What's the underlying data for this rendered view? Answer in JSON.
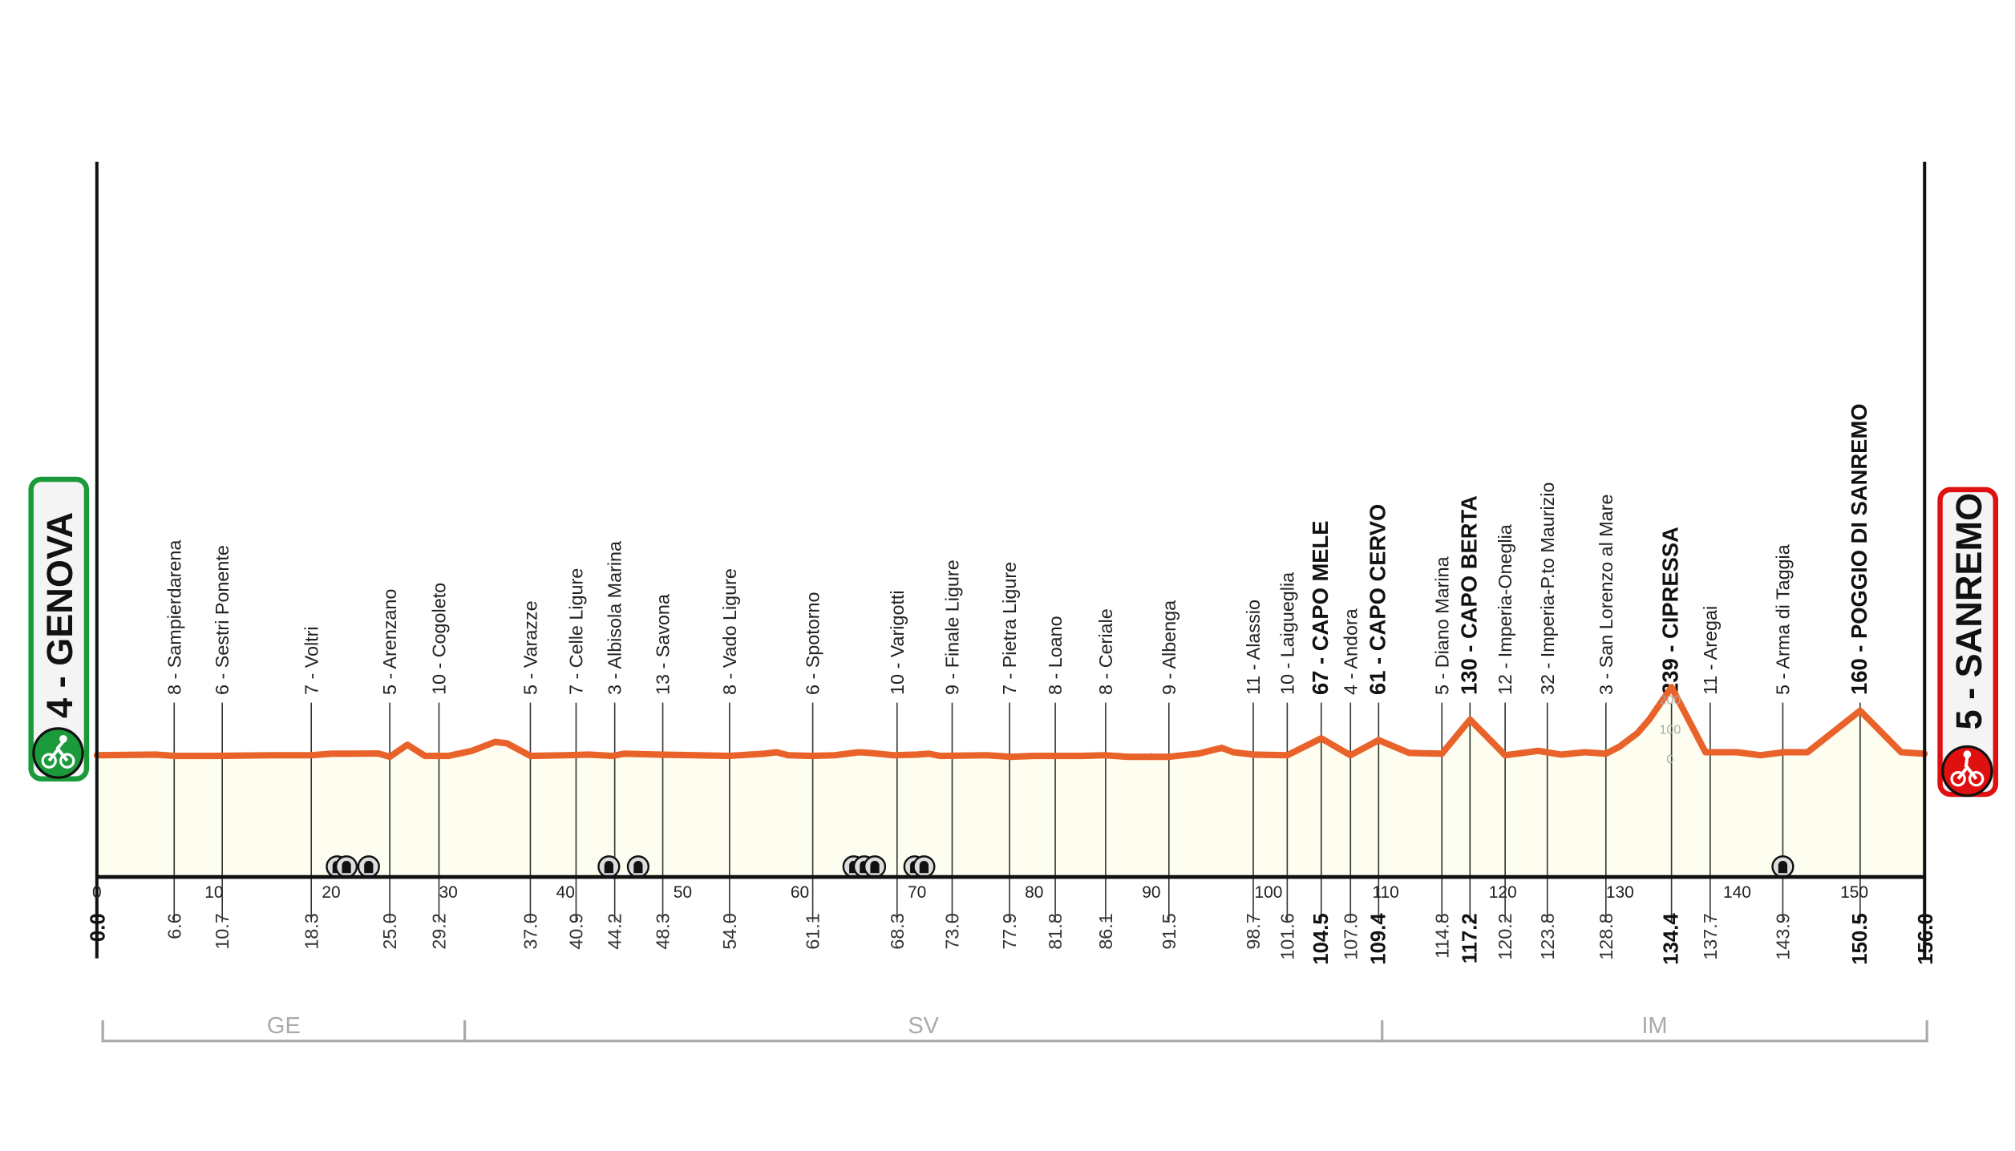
{
  "chart_data": {
    "type": "area",
    "title": "",
    "xlabel": "",
    "ylabel": "",
    "xlim": [
      0,
      156
    ],
    "x_ticks": [
      0,
      10,
      20,
      30,
      40,
      50,
      60,
      70,
      80,
      90,
      100,
      110,
      120,
      130,
      140,
      150
    ],
    "elevation_scale_labels": [
      "200",
      "100",
      "0"
    ],
    "grid": true,
    "colors": {
      "profile": "#e8622a",
      "fill": "#fdfdf0",
      "start": "#1a9a3a",
      "finish": "#e01010",
      "region": "#aaaaaa"
    },
    "start": {
      "label": "4 - GENOVA",
      "km": "0.0",
      "icon": "cyclist-start-icon"
    },
    "finish": {
      "label": "5 - SANREMO",
      "km": "156.0",
      "icon": "cyclist-finish-icon"
    },
    "profile": [
      [
        0,
        10
      ],
      [
        5,
        12
      ],
      [
        6.6,
        8
      ],
      [
        10,
        8
      ],
      [
        15,
        10
      ],
      [
        18.3,
        10
      ],
      [
        20,
        15
      ],
      [
        22,
        15
      ],
      [
        24,
        16
      ],
      [
        25,
        5
      ],
      [
        26.5,
        45
      ],
      [
        28,
        8
      ],
      [
        30,
        8
      ],
      [
        32,
        25
      ],
      [
        34,
        55
      ],
      [
        35,
        50
      ],
      [
        37,
        8
      ],
      [
        40,
        10
      ],
      [
        42,
        12
      ],
      [
        44,
        8
      ],
      [
        45,
        15
      ],
      [
        48,
        12
      ],
      [
        54,
        8
      ],
      [
        57,
        15
      ],
      [
        58,
        20
      ],
      [
        59,
        10
      ],
      [
        61,
        8
      ],
      [
        63,
        10
      ],
      [
        65,
        20
      ],
      [
        66,
        18
      ],
      [
        68,
        10
      ],
      [
        70,
        12
      ],
      [
        71,
        15
      ],
      [
        72,
        8
      ],
      [
        76,
        10
      ],
      [
        78,
        5
      ],
      [
        80,
        8
      ],
      [
        84,
        8
      ],
      [
        86,
        10
      ],
      [
        88,
        5
      ],
      [
        91.5,
        5
      ],
      [
        94,
        15
      ],
      [
        96,
        35
      ],
      [
        97,
        20
      ],
      [
        98.7,
        12
      ],
      [
        101.6,
        10
      ],
      [
        104.5,
        67
      ],
      [
        107,
        10
      ],
      [
        109.4,
        61
      ],
      [
        112,
        18
      ],
      [
        114.8,
        15
      ],
      [
        117.2,
        130
      ],
      [
        120.2,
        10
      ],
      [
        123,
        25
      ],
      [
        125,
        12
      ],
      [
        127,
        20
      ],
      [
        128.8,
        15
      ],
      [
        130,
        40
      ],
      [
        131.5,
        85
      ],
      [
        132.5,
        130
      ],
      [
        134.4,
        239
      ],
      [
        137.3,
        20
      ],
      [
        140,
        20
      ],
      [
        142,
        10
      ],
      [
        144,
        20
      ],
      [
        146,
        20
      ],
      [
        150.5,
        160
      ],
      [
        154,
        20
      ],
      [
        156,
        15
      ]
    ],
    "places": [
      {
        "km": "6.6",
        "label": "8 - Sampierdarena",
        "bold": false
      },
      {
        "km": "10.7",
        "label": "6 - Sestri Ponente",
        "bold": false
      },
      {
        "km": "18.3",
        "label": "7 - Voltri",
        "bold": false
      },
      {
        "km": "25.0",
        "label": "5 - Arenzano",
        "bold": false
      },
      {
        "km": "29.2",
        "label": "10 - Cogoleto",
        "bold": false
      },
      {
        "km": "37.0",
        "label": "5 - Varazze",
        "bold": false
      },
      {
        "km": "40.9",
        "label": "7 - Celle Ligure",
        "bold": false
      },
      {
        "km": "44.2",
        "label": "3 - Albisola Marina",
        "bold": false
      },
      {
        "km": "48.3",
        "label": "13 - Savona",
        "bold": false
      },
      {
        "km": "54.0",
        "label": "8 - Vado Ligure",
        "bold": false
      },
      {
        "km": "61.1",
        "label": "6 - Spotorno",
        "bold": false
      },
      {
        "km": "68.3",
        "label": "10 - Varigotti",
        "bold": false
      },
      {
        "km": "73.0",
        "label": "9 - Finale Ligure",
        "bold": false
      },
      {
        "km": "77.9",
        "label": "7 - Pietra Ligure",
        "bold": false
      },
      {
        "km": "81.8",
        "label": "8 - Loano",
        "bold": false
      },
      {
        "km": "86.1",
        "label": "8 - Ceriale",
        "bold": false
      },
      {
        "km": "91.5",
        "label": "9 - Albenga",
        "bold": false
      },
      {
        "km": "98.7",
        "label": "11 - Alassio",
        "bold": false
      },
      {
        "km": "101.6",
        "label": "10 - Laigueglia",
        "bold": false
      },
      {
        "km": "104.5",
        "label": "67 - CAPO MELE",
        "bold": true
      },
      {
        "km": "107.0",
        "label": "4 - Andora",
        "bold": false
      },
      {
        "km": "109.4",
        "label": "61 - CAPO CERVO",
        "bold": true
      },
      {
        "km": "114.8",
        "label": "5 - Diano Marina",
        "bold": false
      },
      {
        "km": "117.2",
        "label": "130 - CAPO BERTA",
        "bold": true
      },
      {
        "km": "120.2",
        "label": "12 - Imperia-Oneglia",
        "bold": false
      },
      {
        "km": "123.8",
        "label": "32 - Imperia-P.to Maurizio",
        "bold": false
      },
      {
        "km": "128.8",
        "label": "3 - San Lorenzo al Mare",
        "bold": false
      },
      {
        "km": "134.4",
        "label": "239 - CIPRESSA",
        "bold": true
      },
      {
        "km": "137.7",
        "label": "11 - Aregai",
        "bold": false
      },
      {
        "km": "143.9",
        "label": "5 - Arma di Taggia",
        "bold": false
      },
      {
        "km": "150.5",
        "label": "160 - POGGIO DI SANREMO",
        "bold": true
      }
    ],
    "tunnels_km": [
      20.5,
      21.3,
      23.2,
      43.7,
      46.2,
      64.6,
      65.5,
      66.4,
      69.8,
      70.6,
      143.9
    ],
    "regions": [
      {
        "label": "GE",
        "from_km": 0.5,
        "to_km": 31.4
      },
      {
        "label": "SV",
        "from_km": 31.4,
        "to_km": 109.7
      },
      {
        "label": "IM",
        "from_km": 109.7,
        "to_km": 156.2
      }
    ]
  }
}
